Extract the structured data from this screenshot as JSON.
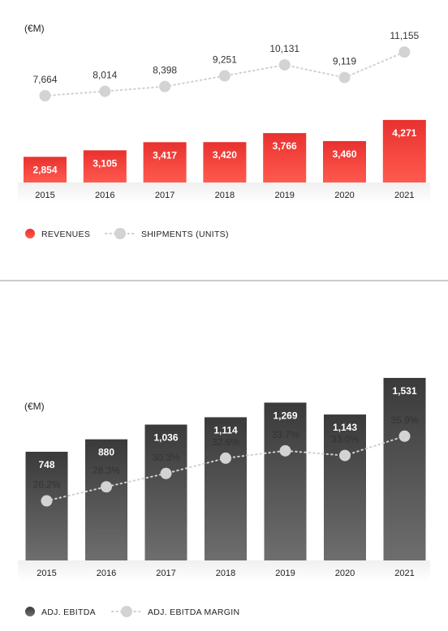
{
  "chart_data": [
    {
      "type": "bar",
      "unit_label": "(€M)",
      "categories": [
        "2015",
        "2016",
        "2017",
        "2018",
        "2019",
        "2020",
        "2021"
      ],
      "series": [
        {
          "name": "REVENUES",
          "kind": "bar",
          "values": [
            2854,
            3105,
            3417,
            3420,
            3766,
            3460,
            4271
          ],
          "labels": [
            "2,854",
            "3,105",
            "3,417",
            "3,420",
            "3,766",
            "3,460",
            "4,271"
          ]
        },
        {
          "name": "SHIPMENTS (UNITS)",
          "kind": "line",
          "values": [
            7664,
            8014,
            8398,
            9251,
            10131,
            9119,
            11155
          ],
          "labels": [
            "7,664",
            "8,014",
            "8,398",
            "9,251",
            "10,131",
            "9,119",
            "11,155"
          ]
        }
      ],
      "colors": {
        "bar_top": "#e8312f",
        "bar_bottom": "#ff5a4e",
        "line": "#d0d0d0"
      },
      "legend_position": "bottom-left"
    },
    {
      "type": "bar",
      "unit_label": "(€M)",
      "categories": [
        "2015",
        "2016",
        "2017",
        "2018",
        "2019",
        "2020",
        "2021"
      ],
      "series": [
        {
          "name": "ADJ. EBITDA",
          "kind": "bar",
          "values": [
            748,
            880,
            1036,
            1114,
            1269,
            1143,
            1531
          ],
          "labels": [
            "748",
            "880",
            "1,036",
            "1,114",
            "1,269",
            "1,143",
            "1,531"
          ]
        },
        {
          "name": "ADJ. EBITDA MARGIN",
          "kind": "line",
          "values": [
            26.2,
            28.3,
            30.3,
            32.6,
            33.7,
            33.0,
            35.9
          ],
          "labels": [
            "26.2%",
            "28.3%",
            "30.3%",
            "32.6%",
            "33.7%",
            "33.0%",
            "35.9%"
          ]
        }
      ],
      "colors": {
        "bar_top": "#3a3a3a",
        "bar_bottom": "#6e6e6e",
        "line": "#d0d0d0"
      },
      "legend_position": "bottom-left"
    }
  ]
}
